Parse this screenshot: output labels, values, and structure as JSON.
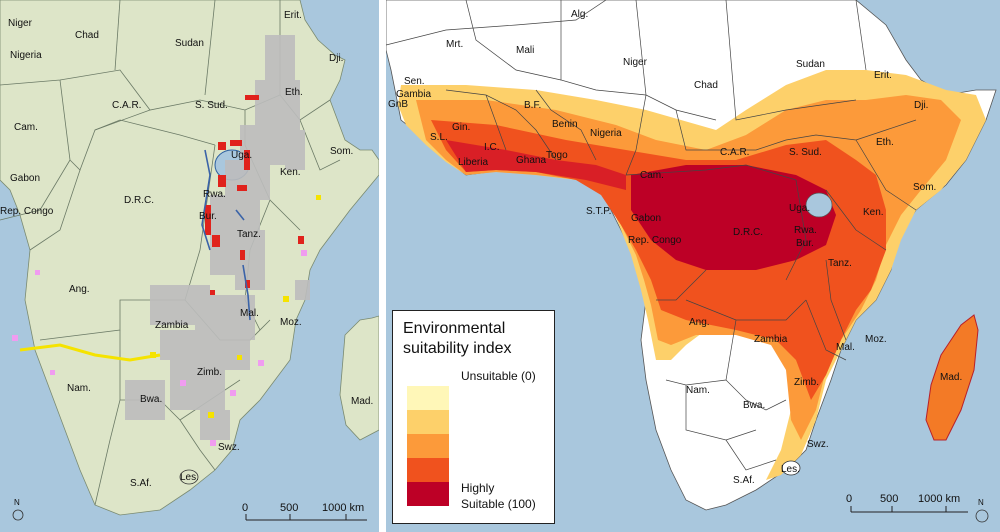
{
  "left_map": {
    "labels": [
      "Niger",
      "Chad",
      "Sudan",
      "Erit.",
      "Dji.",
      "Nigeria",
      "C.A.R.",
      "S. Sud.",
      "Eth.",
      "Cam.",
      "Uga.",
      "Ken.",
      "Som.",
      "Gabon",
      "D.R.C.",
      "Rwa.",
      "Rep. Congo",
      "Bur.",
      "Tanz.",
      "Ang.",
      "Zambia",
      "Mal.",
      "Moz.",
      "Zimb.",
      "Nam.",
      "Bwa.",
      "Mad.",
      "Swz.",
      "S.Af.",
      "Les."
    ],
    "scale_labels": [
      "0",
      "500",
      "1000 km"
    ],
    "north_label": "N"
  },
  "right_map": {
    "labels": [
      "Alg.",
      "Mrt.",
      "Mali",
      "Niger",
      "Chad",
      "Sudan",
      "Sen.",
      "Gambia",
      "GnB",
      "Gin.",
      "S.L.",
      "Liberia",
      "I.C.",
      "Ghana",
      "Togo",
      "B.F.",
      "Benin",
      "Nigeria",
      "C.A.R.",
      "S. Sud.",
      "Erit.",
      "Dji.",
      "Eth.",
      "Cam.",
      "S.T.P.",
      "Gabon",
      "Rep. Congo",
      "D.R.C.",
      "Uga.",
      "Ken.",
      "Som.",
      "Rwa.",
      "Bur.",
      "Tanz.",
      "Ang.",
      "Zambia",
      "Mal.",
      "Moz.",
      "Mad.",
      "Nam.",
      "Bwa.",
      "Zimb.",
      "Swz.",
      "S.Af.",
      "Les."
    ],
    "scale_labels": [
      "0",
      "500",
      "1000 km"
    ],
    "north_label": "N"
  },
  "legend": {
    "title_line1": "Environmental",
    "title_line2": "suitability index",
    "top_label": "Unsuitable (0)",
    "bottom_label_line1": "Highly",
    "bottom_label_line2": "Suitable (100)",
    "colors": [
      "#fff7b8",
      "#fdd06a",
      "#fc9a3a",
      "#f0521e",
      "#bd0026"
    ]
  },
  "colors": {
    "ocean": "#a9c7dd",
    "land_left": "#dde5c8",
    "land_right": "#ffffff"
  }
}
